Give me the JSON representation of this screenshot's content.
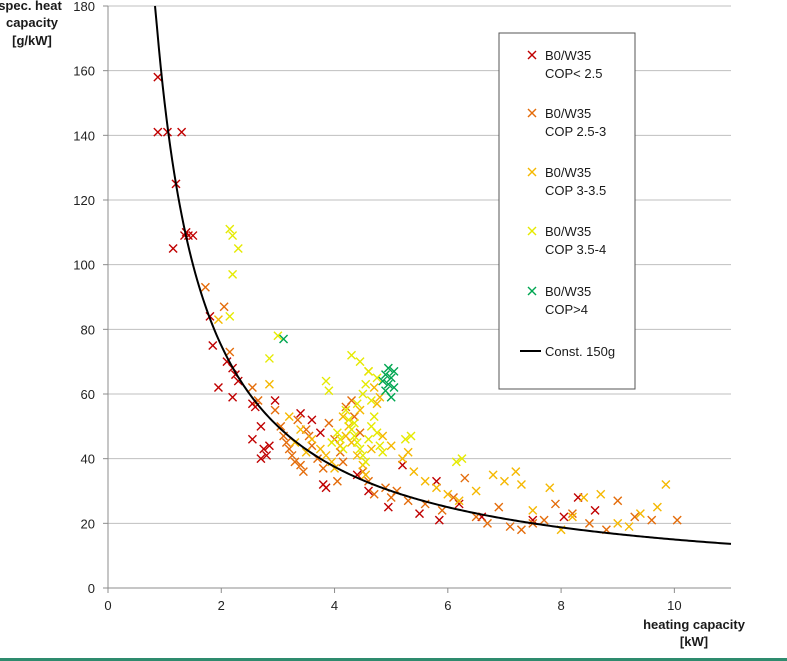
{
  "chart_data": {
    "type": "scatter",
    "title": "",
    "ylabel_lines": [
      "spec. heat",
      "capacity",
      "[g/kW]"
    ],
    "xlabel_lines": [
      "heating capacity",
      "[kW]"
    ],
    "xlim": [
      0,
      11
    ],
    "ylim": [
      0,
      180
    ],
    "x_ticks": [
      0,
      2,
      4,
      6,
      8,
      10
    ],
    "y_ticks": [
      0,
      20,
      40,
      60,
      80,
      100,
      120,
      140,
      160,
      180
    ],
    "grid": "horizontal",
    "legend_position": "top-right",
    "series": [
      {
        "name": "B0/W35 COP< 2.5",
        "label_lines": [
          "B0/W35",
          "COP< 2.5"
        ],
        "marker": "x",
        "color": "#c00000",
        "points": [
          [
            0.88,
            158
          ],
          [
            0.88,
            141
          ],
          [
            1.05,
            141
          ],
          [
            1.3,
            141
          ],
          [
            1.2,
            125
          ],
          [
            1.15,
            105
          ],
          [
            1.38,
            110
          ],
          [
            1.42,
            109
          ],
          [
            1.5,
            109
          ],
          [
            1.35,
            109
          ],
          [
            1.8,
            84
          ],
          [
            1.85,
            75
          ],
          [
            1.95,
            62
          ],
          [
            2.1,
            70
          ],
          [
            2.2,
            68
          ],
          [
            2.25,
            66
          ],
          [
            2.3,
            64
          ],
          [
            2.2,
            59
          ],
          [
            2.55,
            57
          ],
          [
            2.6,
            56
          ],
          [
            2.55,
            46
          ],
          [
            2.7,
            50
          ],
          [
            2.75,
            43
          ],
          [
            2.8,
            41
          ],
          [
            2.85,
            44
          ],
          [
            2.7,
            40
          ],
          [
            2.95,
            58
          ],
          [
            3.4,
            54
          ],
          [
            3.6,
            52
          ],
          [
            3.75,
            48
          ],
          [
            3.8,
            32
          ],
          [
            3.85,
            31
          ],
          [
            4.4,
            35
          ],
          [
            4.6,
            30
          ],
          [
            4.95,
            25
          ],
          [
            5.2,
            38
          ],
          [
            5.5,
            23
          ],
          [
            5.8,
            33
          ],
          [
            5.85,
            21
          ],
          [
            6.2,
            26
          ],
          [
            6.6,
            22
          ],
          [
            7.5,
            21
          ],
          [
            8.6,
            24
          ],
          [
            8.3,
            28
          ],
          [
            8.05,
            22
          ]
        ]
      },
      {
        "name": "B0/W35 COP 2.5-3",
        "label_lines": [
          "B0/W35",
          "COP 2.5-3"
        ],
        "marker": "x",
        "color": "#e46c0a",
        "points": [
          [
            1.72,
            93
          ],
          [
            2.05,
            87
          ],
          [
            2.15,
            73
          ],
          [
            2.55,
            62
          ],
          [
            2.65,
            58
          ],
          [
            2.95,
            55
          ],
          [
            3.05,
            50
          ],
          [
            3.1,
            47
          ],
          [
            3.15,
            45
          ],
          [
            3.25,
            41
          ],
          [
            3.3,
            39
          ],
          [
            3.4,
            38
          ],
          [
            3.5,
            49
          ],
          [
            3.6,
            44
          ],
          [
            3.7,
            40
          ],
          [
            3.8,
            37
          ],
          [
            3.9,
            51
          ],
          [
            4.0,
            46
          ],
          [
            4.1,
            42
          ],
          [
            4.15,
            39
          ],
          [
            4.2,
            56
          ],
          [
            4.3,
            58
          ],
          [
            4.35,
            53
          ],
          [
            4.45,
            48
          ],
          [
            4.5,
            36
          ],
          [
            4.6,
            33
          ],
          [
            4.7,
            29
          ],
          [
            4.9,
            31
          ],
          [
            5.0,
            28
          ],
          [
            5.1,
            30
          ],
          [
            5.3,
            27
          ],
          [
            5.6,
            26
          ],
          [
            5.9,
            24
          ],
          [
            6.1,
            28
          ],
          [
            6.3,
            34
          ],
          [
            6.5,
            22
          ],
          [
            6.7,
            20
          ],
          [
            6.9,
            25
          ],
          [
            7.1,
            19
          ],
          [
            7.3,
            18
          ],
          [
            7.5,
            20
          ],
          [
            7.7,
            21
          ],
          [
            7.9,
            26
          ],
          [
            8.2,
            23
          ],
          [
            8.5,
            20
          ],
          [
            8.8,
            18
          ],
          [
            9.0,
            27
          ],
          [
            9.3,
            22
          ],
          [
            9.6,
            21
          ],
          [
            10.05,
            21
          ],
          [
            3.35,
            52
          ],
          [
            3.55,
            47
          ],
          [
            3.2,
            43
          ],
          [
            3.45,
            36
          ],
          [
            4.05,
            33
          ]
        ]
      },
      {
        "name": "B0/W35 COP 3-3.5",
        "label_lines": [
          "B0/W35",
          "COP 3-3.5"
        ],
        "marker": "x",
        "color": "#f5b800",
        "points": [
          [
            1.95,
            83
          ],
          [
            2.85,
            63
          ],
          [
            3.2,
            53
          ],
          [
            3.4,
            49
          ],
          [
            3.6,
            46
          ],
          [
            3.75,
            43
          ],
          [
            3.85,
            41
          ],
          [
            3.95,
            39
          ],
          [
            4.0,
            37
          ],
          [
            4.1,
            44
          ],
          [
            4.2,
            47
          ],
          [
            4.25,
            50
          ],
          [
            4.3,
            45
          ],
          [
            4.4,
            41
          ],
          [
            4.5,
            38
          ],
          [
            4.55,
            35
          ],
          [
            4.65,
            43
          ],
          [
            4.75,
            57
          ],
          [
            4.8,
            59
          ],
          [
            4.7,
            62
          ],
          [
            4.6,
            67
          ],
          [
            4.85,
            47
          ],
          [
            5.0,
            44
          ],
          [
            5.2,
            40
          ],
          [
            5.4,
            36
          ],
          [
            5.6,
            33
          ],
          [
            5.8,
            31
          ],
          [
            6.0,
            29
          ],
          [
            6.2,
            27
          ],
          [
            6.5,
            30
          ],
          [
            6.8,
            35
          ],
          [
            7.0,
            33
          ],
          [
            7.3,
            32
          ],
          [
            7.5,
            24
          ],
          [
            7.8,
            31
          ],
          [
            8.0,
            18
          ],
          [
            8.2,
            22
          ],
          [
            8.4,
            28
          ],
          [
            8.7,
            29
          ],
          [
            9.0,
            20
          ],
          [
            9.2,
            19
          ],
          [
            9.4,
            23
          ],
          [
            9.7,
            25
          ],
          [
            9.85,
            32
          ],
          [
            7.2,
            36
          ],
          [
            3.3,
            45
          ],
          [
            3.5,
            42
          ],
          [
            4.15,
            53
          ],
          [
            4.45,
            55
          ],
          [
            5.3,
            42
          ]
        ]
      },
      {
        "name": "B0/W35 COP 3.5-4",
        "label_lines": [
          "B0/W35",
          "COP 3.5-4"
        ],
        "marker": "x",
        "color": "#e5ea00",
        "points": [
          [
            2.15,
            111
          ],
          [
            2.2,
            109
          ],
          [
            2.3,
            105
          ],
          [
            2.2,
            97
          ],
          [
            2.15,
            84
          ],
          [
            2.85,
            71
          ],
          [
            3.0,
            78
          ],
          [
            3.85,
            64
          ],
          [
            3.9,
            61
          ],
          [
            4.3,
            72
          ],
          [
            4.45,
            70
          ],
          [
            4.6,
            67
          ],
          [
            4.75,
            65
          ],
          [
            4.55,
            63
          ],
          [
            4.65,
            58
          ],
          [
            4.2,
            55
          ],
          [
            4.25,
            52
          ],
          [
            4.3,
            49
          ],
          [
            4.35,
            47
          ],
          [
            4.4,
            45
          ],
          [
            4.45,
            43
          ],
          [
            4.5,
            41
          ],
          [
            4.55,
            39
          ],
          [
            4.6,
            46
          ],
          [
            4.65,
            50
          ],
          [
            4.7,
            53
          ],
          [
            4.75,
            48
          ],
          [
            4.8,
            44
          ],
          [
            4.85,
            42
          ],
          [
            4.05,
            48
          ],
          [
            4.1,
            46
          ],
          [
            4.15,
            43
          ],
          [
            3.95,
            45
          ],
          [
            5.25,
            46
          ],
          [
            5.35,
            47
          ],
          [
            6.15,
            39
          ],
          [
            6.25,
            40
          ],
          [
            4.4,
            57
          ],
          [
            4.5,
            60
          ],
          [
            4.35,
            51
          ]
        ]
      },
      {
        "name": "B0/W35 COP>4",
        "label_lines": [
          "B0/W35",
          "COP>4"
        ],
        "marker": "x",
        "color": "#00a651",
        "points": [
          [
            3.1,
            77
          ],
          [
            4.85,
            64
          ],
          [
            4.9,
            66
          ],
          [
            4.95,
            63
          ],
          [
            5.0,
            65
          ],
          [
            5.05,
            62
          ],
          [
            5.0,
            59
          ],
          [
            4.9,
            61
          ],
          [
            5.05,
            67
          ],
          [
            4.95,
            68
          ]
        ]
      },
      {
        "name": "Const. 150g",
        "label_lines": [
          "Const. 150g"
        ],
        "type": "line",
        "color": "#000000",
        "formula": "y = 150 / x",
        "x_range": [
          0.83,
          11
        ]
      }
    ]
  }
}
